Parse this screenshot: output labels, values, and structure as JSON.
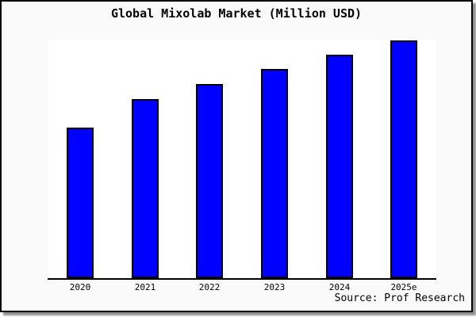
{
  "frame": {
    "background_color": "#fafafa",
    "border_color": "#000000",
    "shadow_color": "#8f8f8f"
  },
  "chart_data": {
    "type": "bar",
    "title": "Global Mixolab Market (Million USD)",
    "categories": [
      "2020",
      "2021",
      "2022",
      "2023",
      "2024",
      "2025e"
    ],
    "values": [
      63.3,
      75.3,
      81.7,
      88.0,
      94.0,
      100.0
    ],
    "ylim": [
      0,
      100
    ],
    "xlabel": "",
    "ylabel": "",
    "y_axis_visible": false,
    "grid": false,
    "legend": false,
    "bar_color": "#0000ff",
    "bar_edge_color": "#000000",
    "plot_background": "#ffffff",
    "axis_line_color": "#000000",
    "source_note": "Source: Prof Research"
  }
}
